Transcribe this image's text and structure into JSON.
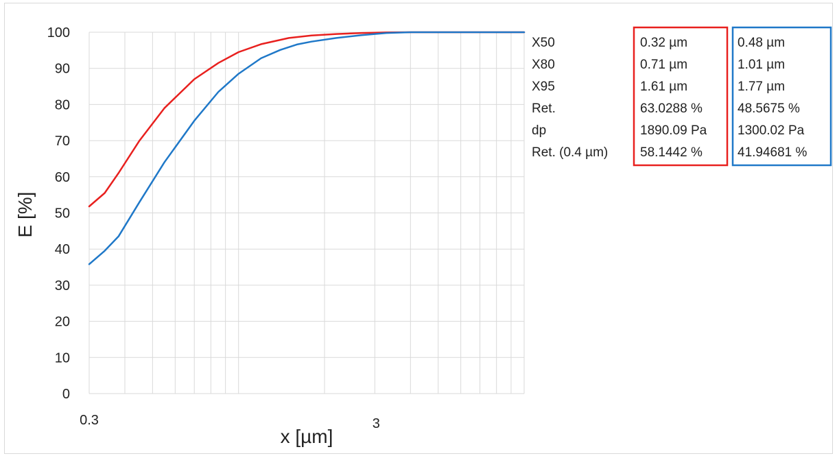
{
  "chart_data": {
    "type": "line",
    "title": "",
    "xlabel": "x [µm]",
    "ylabel": "E [%]",
    "x_scale": "log",
    "xlim": [
      0.3,
      10
    ],
    "ylim": [
      0,
      100
    ],
    "x_ticks": [
      {
        "value": 0.3,
        "label": "0.3"
      },
      {
        "value": 3,
        "label": "3"
      }
    ],
    "y_ticks": [
      0,
      10,
      20,
      30,
      40,
      50,
      60,
      70,
      80,
      90,
      100
    ],
    "grid": true,
    "legend": "none",
    "series": [
      {
        "color": "#e8201e",
        "x": [
          0.3,
          0.34,
          0.38,
          0.45,
          0.55,
          0.7,
          0.85,
          1.0,
          1.2,
          1.5,
          1.8,
          2.2,
          2.7,
          3.3,
          4,
          5,
          7,
          10
        ],
        "y": [
          51.8,
          55.5,
          61,
          70,
          79,
          87,
          91.5,
          94.5,
          96.7,
          98.4,
          99.1,
          99.5,
          99.8,
          99.95,
          100,
          100,
          100,
          100
        ]
      },
      {
        "color": "#1f78c8",
        "x": [
          0.3,
          0.34,
          0.38,
          0.45,
          0.55,
          0.7,
          0.85,
          1.0,
          1.2,
          1.4,
          1.6,
          1.8,
          2.2,
          2.7,
          3.3,
          4,
          5,
          7,
          10
        ],
        "y": [
          35.8,
          39.5,
          43.5,
          53,
          64,
          75.5,
          83.5,
          88.5,
          92.8,
          95.1,
          96.6,
          97.4,
          98.4,
          99.2,
          99.8,
          100,
          100,
          100,
          100
        ]
      }
    ]
  },
  "summary_table": {
    "row_labels": [
      "X50",
      "X80",
      "X95",
      "Ret.",
      "dp",
      "Ret. (0.4 µm)"
    ],
    "red_box_color": "#e8201e",
    "blue_box_color": "#1f78c8",
    "red_values": [
      "0.32 µm",
      "0.71 µm",
      "1.61 µm",
      "63.0288 %",
      "1890.09 Pa",
      "58.1442 %"
    ],
    "blue_values": [
      "0.48 µm",
      "1.01 µm",
      "1.77 µm",
      "48.5675 %",
      "1300.02 Pa",
      "41.94681 %"
    ]
  }
}
